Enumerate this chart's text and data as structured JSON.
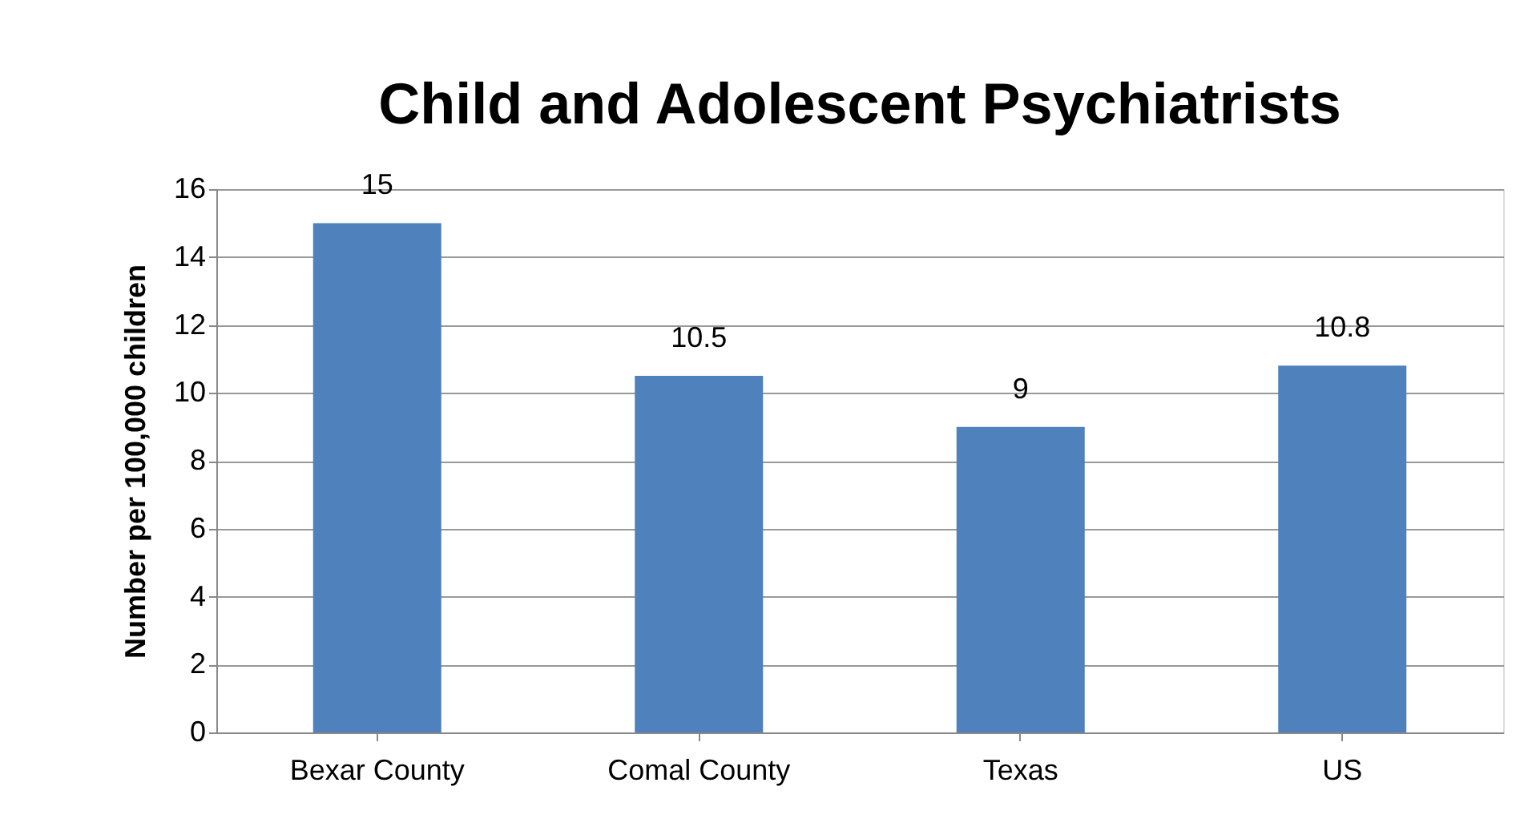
{
  "chart_data": {
    "type": "bar",
    "title": "Child and Adolescent Psychiatrists",
    "ylabel": "Number per 100,000 children",
    "categories": [
      "Bexar County",
      "Comal County",
      "Texas",
      "US"
    ],
    "values": [
      15,
      10.5,
      9,
      10.8
    ],
    "color": "#4f81bd",
    "ylim": [
      0,
      16
    ],
    "yticks": [
      0,
      2,
      4,
      6,
      8,
      10,
      12,
      14,
      16
    ],
    "grid": "y",
    "data_labels": true
  }
}
